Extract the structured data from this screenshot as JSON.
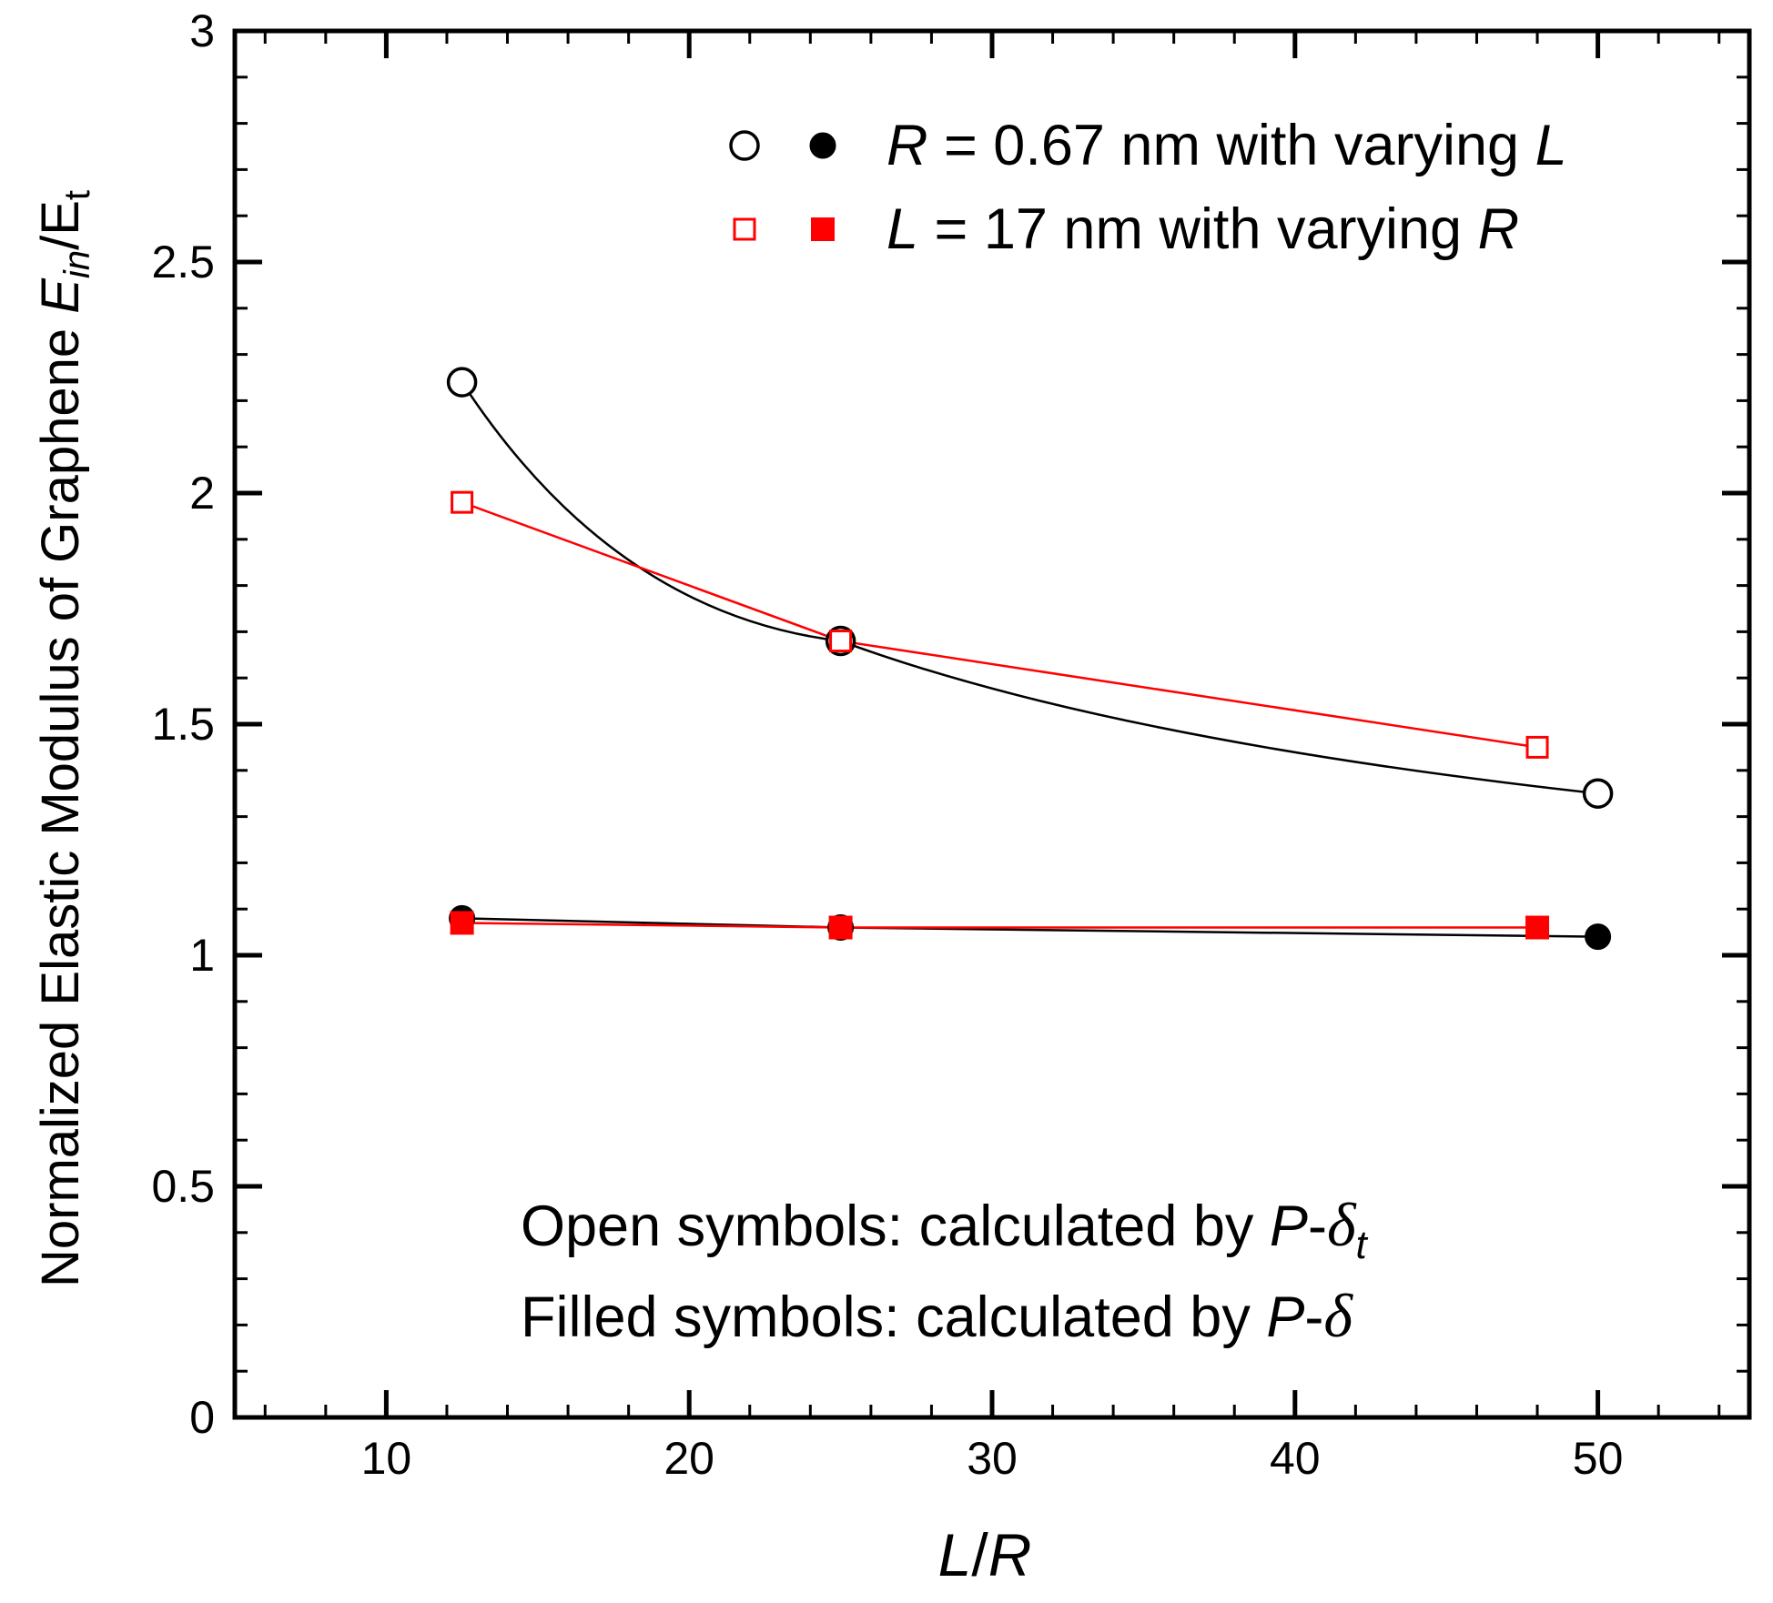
{
  "chart_data": {
    "type": "line",
    "title": "",
    "xlabel": {
      "main": "L",
      "sep": "/",
      "tail": "R"
    },
    "ylabel": {
      "pre": "Normalized Elastic Modulus of Graphene ",
      "E1": "E",
      "sub1": "in",
      "slash": "/E",
      "sub2": "t"
    },
    "xlim": [
      5,
      55
    ],
    "ylim": [
      0,
      3
    ],
    "xticks": [
      10,
      20,
      30,
      40,
      50
    ],
    "xtick_labels": [
      "10",
      "20",
      "30",
      "40",
      "50"
    ],
    "yticks": [
      0,
      0.5,
      1,
      1.5,
      2,
      2.5,
      3
    ],
    "ytick_labels": [
      "0",
      "0.5",
      "1",
      "1.5",
      "2",
      "2.5",
      "3"
    ],
    "x_minor_step": 2,
    "y_minor_step": 0.1,
    "grid": false,
    "legend_position": "top-right",
    "legend": [
      {
        "parts": [
          {
            "t": "R",
            "i": true
          },
          {
            "t": " = 0.67 nm with varying ",
            "i": false
          },
          {
            "t": "L",
            "i": true
          }
        ],
        "color": "#000000",
        "marker": "circle"
      },
      {
        "parts": [
          {
            "t": "L",
            "i": true
          },
          {
            "t": " = 17 nm with varying ",
            "i": false
          },
          {
            "t": "R",
            "i": true
          }
        ],
        "color": "#ff0000",
        "marker": "square"
      }
    ],
    "annotations": [
      {
        "text": "Open symbols: calculated by ",
        "math": "P",
        "dash": "-",
        "delta": "δ",
        "sub": "t"
      },
      {
        "text": "Filled symbols: calculated by ",
        "math": "P",
        "dash": "-",
        "delta": "δ",
        "sub": ""
      }
    ],
    "series": [
      {
        "key": "circle-open",
        "color": "#000000",
        "marker": "circle",
        "filled": false,
        "curve": "smooth",
        "x": [
          12.5,
          25,
          50
        ],
        "y": [
          2.24,
          1.68,
          1.35
        ]
      },
      {
        "key": "square-open",
        "color": "#ff0000",
        "marker": "square",
        "filled": false,
        "curve": "linear",
        "x": [
          12.5,
          25,
          48
        ],
        "y": [
          1.98,
          1.68,
          1.45
        ]
      },
      {
        "key": "circle-filled",
        "color": "#000000",
        "marker": "circle",
        "filled": true,
        "curve": "linear",
        "x": [
          12.5,
          25,
          50
        ],
        "y": [
          1.08,
          1.06,
          1.04
        ]
      },
      {
        "key": "square-filled",
        "color": "#ff0000",
        "marker": "square",
        "filled": true,
        "curve": "linear",
        "x": [
          12.5,
          25,
          48
        ],
        "y": [
          1.07,
          1.06,
          1.06
        ]
      }
    ]
  }
}
